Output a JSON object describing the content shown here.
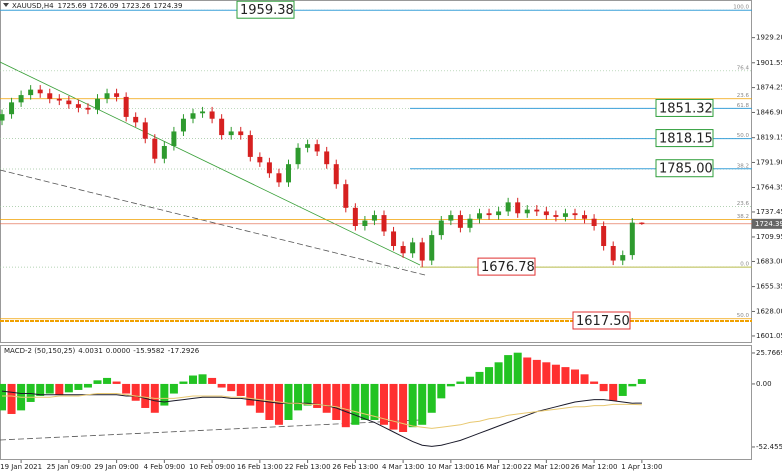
{
  "chart_data": [
    {
      "type": "candlestick",
      "symbol": "XAUUSD,H4",
      "ohlc_readout": [
        1725.69,
        1726.09,
        1723.26,
        1724.39
      ],
      "categories": [
        null,
        null,
        "19 Jan 2021",
        null,
        null,
        null,
        null,
        "25 Jan 09:00",
        null,
        null,
        null,
        null,
        "29 Jan 09:00",
        null,
        null,
        null,
        null,
        "4 Feb 09:00",
        null,
        null,
        null,
        null,
        "10 Feb 09:00",
        null,
        null,
        null,
        null,
        "16 Feb 13:00",
        null,
        null,
        null,
        null,
        "22 Feb 13:00",
        null,
        null,
        null,
        null,
        "26 Feb 13:00",
        null,
        null,
        null,
        null,
        "4 Mar 13:00",
        null,
        null,
        null,
        null,
        "10 Mar 13:00",
        null,
        null,
        null,
        null,
        "16 Mar 12:00",
        null,
        null,
        null,
        null,
        "22 Mar 12:00",
        null,
        null,
        null,
        null,
        "26 Mar 12:00",
        null,
        null,
        null,
        null,
        "1 Apr 13:00"
      ],
      "open": [
        1838,
        1845,
        1858,
        1866,
        1872,
        1868,
        1862,
        1860,
        1856,
        1852,
        1850,
        1862,
        1868,
        1864,
        1842,
        1836,
        1818,
        1796,
        1810,
        1826,
        1840,
        1846,
        1848,
        1840,
        1822,
        1826,
        1822,
        1798,
        1792,
        1780,
        1770,
        1790,
        1808,
        1812,
        1804,
        1790,
        1768,
        1742,
        1722,
        1728,
        1734,
        1716,
        1700,
        1692,
        1704,
        1684,
        1712,
        1728,
        1734,
        1720,
        1730,
        1736,
        1734,
        1738,
        1748,
        1736,
        1740,
        1738,
        1734,
        1732,
        1736,
        1734,
        1730,
        1722,
        1700,
        1684,
        1690,
        1725.69
      ],
      "high": [
        1850,
        1863,
        1871,
        1877,
        1877,
        1873,
        1867,
        1865,
        1861,
        1857,
        1867,
        1873,
        1873,
        1869,
        1847,
        1841,
        1823,
        1815,
        1831,
        1845,
        1851,
        1853,
        1853,
        1845,
        1831,
        1831,
        1827,
        1803,
        1797,
        1785,
        1795,
        1813,
        1817,
        1817,
        1809,
        1795,
        1773,
        1747,
        1733,
        1739,
        1739,
        1721,
        1705,
        1709,
        1709,
        1717,
        1733,
        1739,
        1739,
        1735,
        1741,
        1741,
        1743,
        1753,
        1753,
        1745,
        1745,
        1743,
        1739,
        1741,
        1741,
        1739,
        1735,
        1727,
        1705,
        1695,
        1730.69,
        1726.09
      ],
      "low": [
        1833,
        1840,
        1853,
        1861,
        1863,
        1857,
        1855,
        1851,
        1847,
        1845,
        1845,
        1857,
        1859,
        1837,
        1831,
        1813,
        1791,
        1791,
        1805,
        1821,
        1835,
        1841,
        1835,
        1817,
        1817,
        1817,
        1793,
        1787,
        1775,
        1765,
        1765,
        1785,
        1803,
        1799,
        1785,
        1763,
        1737,
        1717,
        1717,
        1723,
        1711,
        1695,
        1687,
        1687,
        1676.78,
        1679,
        1707,
        1723,
        1715,
        1715,
        1725,
        1729,
        1729,
        1733,
        1731,
        1731,
        1733,
        1729,
        1727,
        1727,
        1729,
        1725,
        1717,
        1695,
        1679,
        1679,
        1685,
        1723.26
      ],
      "close": [
        1845,
        1858,
        1866,
        1872,
        1868,
        1862,
        1860,
        1856,
        1852,
        1850,
        1862,
        1868,
        1864,
        1842,
        1836,
        1818,
        1796,
        1810,
        1826,
        1840,
        1846,
        1848,
        1840,
        1822,
        1826,
        1822,
        1798,
        1792,
        1780,
        1770,
        1790,
        1808,
        1812,
        1804,
        1790,
        1768,
        1742,
        1722,
        1728,
        1734,
        1716,
        1700,
        1692,
        1704,
        1684,
        1712,
        1728,
        1734,
        1720,
        1730,
        1736,
        1734,
        1738,
        1748,
        1736,
        1740,
        1738,
        1734,
        1732,
        1736,
        1734,
        1730,
        1722,
        1700,
        1684,
        1690,
        1725.69,
        1724.39
      ],
      "up_color": "#2e9a2e",
      "down_color": "#d62020",
      "ylim": [
        1594.4,
        1967.3
      ],
      "yticks": [
        1601.05,
        {
          "value": 1628,
          "label": "1628.00"
        },
        1655.35,
        {
          "value": 1683,
          "label": "1683.00"
        },
        1709.95,
        1737.45,
        1764.35,
        {
          "value": 1791.9,
          "label": "1791.90"
        },
        1819.15,
        {
          "value": 1846.9,
          "label": "1846.90"
        },
        1874.25,
        1901.55,
        {
          "value": 1929.2,
          "label": "1929.20"
        }
      ],
      "last_price": 1724.39,
      "levels": [
        {
          "value": 1959.38,
          "color": "#2e9e3a",
          "line_color": "#3aa0d8"
        },
        {
          "value": 1851.32,
          "color": "#2e9e3a",
          "line_color": "#3aa0d8"
        },
        {
          "value": 1818.15,
          "color": "#2e9e3a",
          "line_color": "#3aa0d8"
        },
        {
          "value": 1785,
          "label": "1785.00",
          "color": "#2e9e3a",
          "line_color": "#3aa0d8"
        },
        {
          "value": 1676.78,
          "color": "#e03030",
          "line_color": "#b8bb4a"
        },
        {
          "value": 1617.5,
          "label": "1617.50",
          "color": "#e03030",
          "line_color": "#f0a000"
        }
      ],
      "fib_levels": [
        {
          "label": "100.0",
          "price": 1959.38
        },
        {
          "label": "76.4",
          "price": 1892.7
        },
        {
          "label": "61.8",
          "price": 1851.43
        },
        {
          "label": "50.0",
          "price": 1818.08
        },
        {
          "label": "38.2",
          "price": 1784.73
        },
        {
          "label": "23.6",
          "price": 1743.47
        },
        {
          "label": "0.0",
          "price": 1676.78
        }
      ],
      "fib_color": "#9bc49b",
      "fib2_levels": [
        {
          "label": "23.6",
          "price": 1862
        },
        {
          "label": "38.2",
          "price": 1729
        },
        {
          "label": "50.0",
          "price": 1620
        }
      ],
      "fib2_color": "#f0a000"
    },
    {
      "type": "macd",
      "title": "MACD-2 (50,150,25)",
      "readout": [
        4.0031,
        {
          "value": 0,
          "label": "0.0000"
        },
        -15.9582,
        -17.2926
      ],
      "histogram": [
        -22,
        -25,
        -22,
        -15,
        -10,
        -8,
        -9,
        -7,
        -5,
        -3,
        3,
        5,
        2,
        -8,
        -14,
        -20,
        -24,
        -18,
        -8,
        2,
        7,
        8,
        5,
        -3,
        -6,
        -10,
        -18,
        -24,
        -30,
        -34,
        -30,
        -22,
        -18,
        -20,
        -24,
        -30,
        -36,
        -34,
        -30,
        -30,
        -34,
        -38,
        -40,
        -36,
        -34,
        -24,
        -12,
        -2,
        2,
        6,
        10,
        14,
        18,
        24,
        26,
        22,
        20,
        18,
        16,
        14,
        12,
        8,
        2,
        -6,
        -14,
        -10,
        -2,
        4.0031
      ],
      "main": [
        -6,
        -7,
        -8,
        -8,
        -9,
        -9,
        -9,
        -9,
        -9,
        -9,
        -9,
        -9,
        -9,
        -10,
        -10,
        -12,
        -14,
        -15,
        -14,
        -13,
        -12,
        -11,
        -11,
        -11,
        -12,
        -12,
        -13,
        -14,
        -15,
        -16,
        -16,
        -16,
        -16,
        -17,
        -18,
        -20,
        -23,
        -26,
        -29,
        -32,
        -36,
        -40,
        -44,
        -48,
        -51,
        -52,
        -51,
        -49,
        -47,
        -44,
        -41,
        -38,
        -35,
        -32,
        -29,
        -26,
        -23,
        -21,
        -19,
        -17,
        -15,
        -14,
        -13,
        -13,
        -14,
        -15,
        -16,
        -15.9582
      ],
      "signal": [
        -10,
        -10,
        -11,
        -11,
        -11,
        -11,
        -10,
        -10,
        -10,
        -9,
        -8,
        -8,
        -8,
        -9,
        -10,
        -11,
        -12,
        -12,
        -12,
        -11,
        -10,
        -10,
        -10,
        -10,
        -11,
        -11,
        -12,
        -13,
        -14,
        -15,
        -16,
        -16,
        -17,
        -17,
        -18,
        -19,
        -21,
        -23,
        -25,
        -27,
        -29,
        -31,
        -33,
        -35,
        -36,
        -37,
        -36,
        -35,
        -34,
        -32,
        -31,
        -29,
        -28,
        -26,
        -25,
        -24,
        -23,
        -22,
        -21,
        -20,
        -19,
        -19,
        -18,
        -18,
        -17,
        -17,
        -17,
        -17.2926
      ],
      "up_color": "#22c322",
      "down_color": "#ff3030",
      "main_color": "#1a1a2a",
      "signal_color": "#e8c870",
      "ylim": [
        -63.3,
        32.4
      ],
      "yticks": [
        25.7669,
        {
          "value": 0,
          "label": "0.00"
        },
        -52.4557
      ]
    }
  ]
}
